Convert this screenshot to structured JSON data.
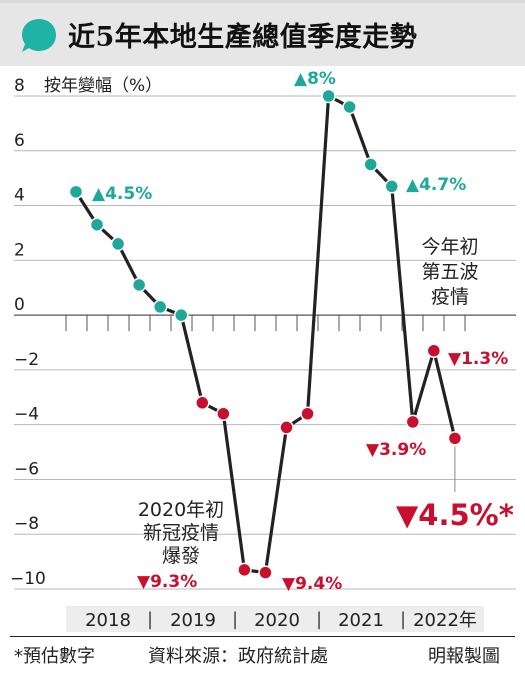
{
  "title": "近5年本地生產總值季度走勢",
  "colors": {
    "header_bg": "#e6e6e6",
    "icon": "#1fb3a5",
    "positive": "#1fa89a",
    "negative": "#c8102e",
    "line": "#222222",
    "grid": "#b8b8b8",
    "year_band": "#ededed"
  },
  "footer": {
    "note": "*預估數字",
    "source": "資料來源：政府統計處",
    "credit": "明報製圖"
  },
  "chart_data": {
    "type": "line",
    "title": "近5年本地生產總值季度走勢",
    "ylabel": "按年變幅（%）",
    "ylim": [
      -10,
      8
    ],
    "yticks": [
      8,
      6,
      4,
      2,
      0,
      -2,
      -4,
      -6,
      -8,
      -10
    ],
    "ytick_labels": [
      "8",
      "6",
      "4",
      "2",
      "0",
      "−2",
      "−4",
      "−6",
      "−8",
      "−10"
    ],
    "grid": true,
    "x": [
      "2018 Q1",
      "2018 Q2",
      "2018 Q3",
      "2018 Q4",
      "2019 Q1",
      "2019 Q2",
      "2019 Q3",
      "2019 Q4",
      "2020 Q1",
      "2020 Q2",
      "2020 Q3",
      "2020 Q4",
      "2021 Q1",
      "2021 Q2",
      "2021 Q3",
      "2021 Q4",
      "2022 Q1",
      "2022 Q2",
      "2022 Q3"
    ],
    "values": [
      4.5,
      3.3,
      2.6,
      1.1,
      0.3,
      0.0,
      -3.2,
      -3.6,
      -9.3,
      -9.4,
      -4.1,
      -3.6,
      8.0,
      7.6,
      5.5,
      4.7,
      -3.9,
      -1.3,
      -4.5
    ],
    "year_labels": [
      "2018",
      "2019",
      "2020",
      "2021",
      "2022年"
    ],
    "annotations": {
      "a_45": "▲4.5%",
      "a_8": "▲8%",
      "a_47": "▲4.7%",
      "a_13": "▼1.3%",
      "a_39": "▼3.9%",
      "a_93": "▼9.3%",
      "a_94": "▼9.4%",
      "a_final": "▼4.5%*",
      "wave5_l1": "今年初",
      "wave5_l2": "第五波",
      "wave5_l3": "疫情",
      "covid_l1": "2020年初",
      "covid_l2": "新冠疫情",
      "covid_l3": "爆發"
    }
  }
}
